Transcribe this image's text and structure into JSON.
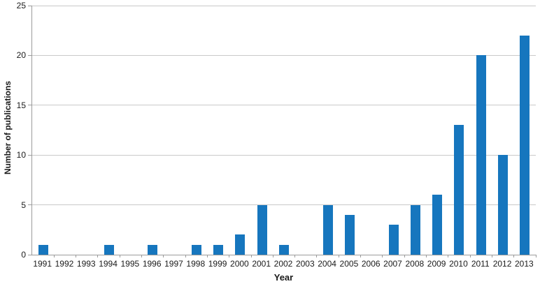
{
  "chart_data": {
    "type": "bar",
    "categories": [
      "1991",
      "1992",
      "1993",
      "1994",
      "1995",
      "1996",
      "1997",
      "1998",
      "1999",
      "2000",
      "2001",
      "2002",
      "2003",
      "2004",
      "2005",
      "2006",
      "2007",
      "2008",
      "2009",
      "2010",
      "2011",
      "2012",
      "2013"
    ],
    "values": [
      1,
      0,
      0,
      1,
      0,
      1,
      0,
      1,
      1,
      2,
      5,
      1,
      0,
      5,
      4,
      0,
      3,
      5,
      6,
      13,
      20,
      10,
      22
    ],
    "title": "",
    "xlabel": "Year",
    "ylabel": "Number of publications",
    "ylim": [
      0,
      25
    ],
    "yticks": [
      0,
      5,
      10,
      15,
      20,
      25
    ],
    "grid": true,
    "legend_position": "none",
    "bar_color": "#1676BE",
    "gridline_color": "#C9C9C9",
    "axis_color": "#9B9B9B",
    "text_color": "#1A1A1A"
  }
}
